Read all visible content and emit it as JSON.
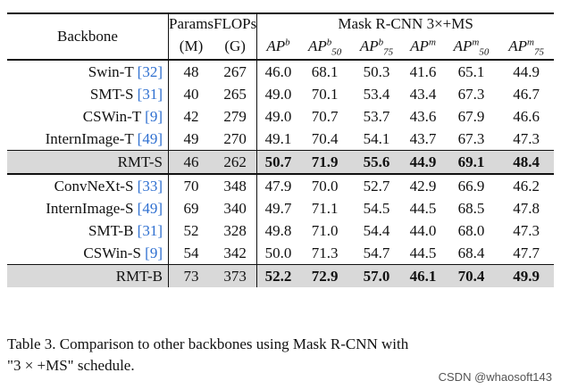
{
  "table": {
    "header": {
      "backbone": "Backbone",
      "params": "Params",
      "params_unit": "(M)",
      "flops": "FLOPs",
      "flops_unit": "(G)",
      "group_title": "Mask R-CNN 3×+MS",
      "metrics": [
        {
          "base": "AP",
          "sup": "b",
          "sub": ""
        },
        {
          "base": "AP",
          "sup": "b",
          "sub": "50"
        },
        {
          "base": "AP",
          "sup": "b",
          "sub": "75"
        },
        {
          "base": "AP",
          "sup": "m",
          "sub": ""
        },
        {
          "base": "AP",
          "sup": "m",
          "sub": "50"
        },
        {
          "base": "AP",
          "sup": "m",
          "sub": "75"
        }
      ]
    },
    "rows": [
      {
        "name": "Swin-T",
        "ref": "[32]",
        "params": "48",
        "flops": "267",
        "vals": [
          "46.0",
          "68.1",
          "50.3",
          "41.6",
          "65.1",
          "44.9"
        ],
        "highlight": false,
        "group_start": false
      },
      {
        "name": "SMT-S",
        "ref": "[31]",
        "params": "40",
        "flops": "265",
        "vals": [
          "49.0",
          "70.1",
          "53.4",
          "43.4",
          "67.3",
          "46.7"
        ],
        "highlight": false,
        "group_start": false
      },
      {
        "name": "CSWin-T",
        "ref": "[9]",
        "params": "42",
        "flops": "279",
        "vals": [
          "49.0",
          "70.7",
          "53.7",
          "43.6",
          "67.9",
          "46.6"
        ],
        "highlight": false,
        "group_start": false
      },
      {
        "name": "InternImage-T",
        "ref": "[49]",
        "params": "49",
        "flops": "270",
        "vals": [
          "49.1",
          "70.4",
          "54.1",
          "43.7",
          "67.3",
          "47.3"
        ],
        "highlight": false,
        "group_start": false
      },
      {
        "name": "RMT-S",
        "ref": "",
        "params": "46",
        "flops": "262",
        "vals": [
          "50.7",
          "71.9",
          "55.6",
          "44.9",
          "69.1",
          "48.4"
        ],
        "highlight": true,
        "group_start": false
      },
      {
        "name": "ConvNeXt-S",
        "ref": "[33]",
        "params": "70",
        "flops": "348",
        "vals": [
          "47.9",
          "70.0",
          "52.7",
          "42.9",
          "66.9",
          "46.2"
        ],
        "highlight": false,
        "group_start": true
      },
      {
        "name": "InternImage-S",
        "ref": "[49]",
        "params": "69",
        "flops": "340",
        "vals": [
          "49.7",
          "71.1",
          "54.5",
          "44.5",
          "68.5",
          "47.8"
        ],
        "highlight": false,
        "group_start": false
      },
      {
        "name": "SMT-B",
        "ref": "[31]",
        "params": "52",
        "flops": "328",
        "vals": [
          "49.8",
          "71.0",
          "54.4",
          "44.0",
          "68.0",
          "47.3"
        ],
        "highlight": false,
        "group_start": false
      },
      {
        "name": "CSWin-S",
        "ref": "[9]",
        "params": "54",
        "flops": "342",
        "vals": [
          "50.0",
          "71.3",
          "54.7",
          "44.5",
          "68.4",
          "47.7"
        ],
        "highlight": false,
        "group_start": false
      },
      {
        "name": "RMT-B",
        "ref": "",
        "params": "73",
        "flops": "373",
        "vals": [
          "52.2",
          "72.9",
          "57.0",
          "46.1",
          "70.4",
          "49.9"
        ],
        "highlight": true,
        "group_start": false
      }
    ]
  },
  "caption": {
    "line1": "Table 3. Comparison to other backbones using Mask R-CNN with",
    "line2": "\"3 × +MS\" schedule."
  },
  "watermark": "CSDN @whaosoft143",
  "colors": {
    "citation": "#2e6fd0",
    "highlight_row": "#d9d9d9"
  }
}
